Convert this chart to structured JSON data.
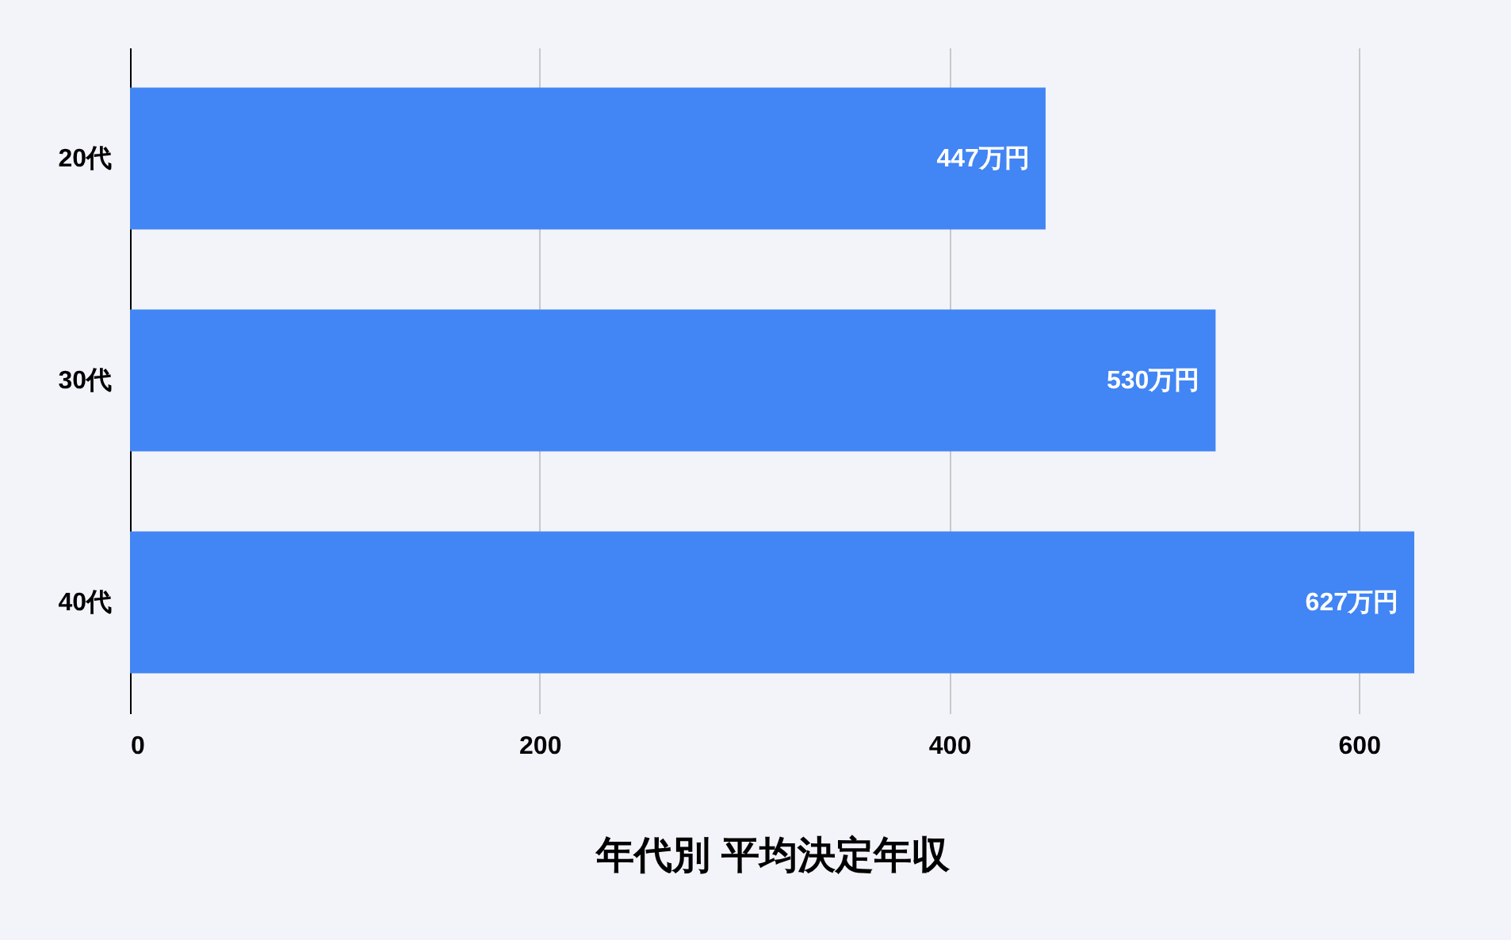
{
  "chart_data": {
    "type": "bar",
    "orientation": "horizontal",
    "xlabel": "年代別 平均決定年収",
    "categories": [
      "20代",
      "30代",
      "40代"
    ],
    "values": [
      447,
      530,
      627
    ],
    "value_labels": [
      "447万円",
      "530万円",
      "627万円"
    ],
    "color": "#4285f4",
    "xlim": [
      0,
      627
    ],
    "xticks": [
      0,
      200,
      400,
      600
    ],
    "grid": "x"
  }
}
